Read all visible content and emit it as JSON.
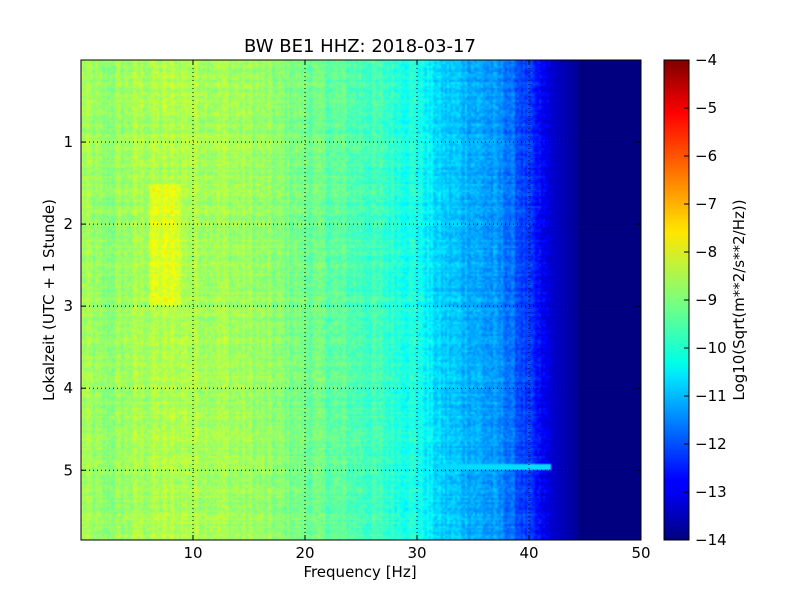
{
  "chart_data": {
    "type": "heatmap",
    "title": "BW BE1 HHZ: 2018-03-17",
    "xlabel": "Frequency [Hz]",
    "ylabel": "Lokalzeit (UTC + 1 Stunde)",
    "xlim": [
      0,
      50
    ],
    "ylim": [
      5.85,
      0
    ],
    "x_ticks": [
      10,
      20,
      30,
      40,
      50
    ],
    "x_tick_labels": [
      "10",
      "20",
      "30",
      "40",
      "50"
    ],
    "y_ticks": [
      1,
      2,
      3,
      4,
      5
    ],
    "y_tick_labels": [
      "1",
      "2",
      "3",
      "4",
      "5"
    ],
    "grid": true,
    "colormap": "jet",
    "colorbar": {
      "label": "Log10(Sqrt(m**2/s**2/Hz))",
      "range": [
        -14,
        -4
      ],
      "ticks": [
        -4,
        -5,
        -6,
        -7,
        -8,
        -9,
        -10,
        -11,
        -12,
        -13,
        -14
      ],
      "tick_labels": [
        "−4",
        "−5",
        "−6",
        "−7",
        "−8",
        "−9",
        "−10",
        "−11",
        "−12",
        "−13",
        "−14"
      ]
    },
    "frequency_profile": {
      "frequency_hz": [
        0,
        2,
        5,
        10,
        15,
        20,
        25,
        28,
        30,
        32,
        35,
        38,
        40,
        41,
        42,
        44,
        45,
        50
      ],
      "log_psd": [
        -8.6,
        -8.9,
        -8.6,
        -8.5,
        -8.7,
        -9.1,
        -9.5,
        -9.8,
        -10.0,
        -10.7,
        -11.0,
        -11.5,
        -12.3,
        -12.8,
        -13.2,
        -13.7,
        -14.0,
        -14.0
      ]
    },
    "annotations": [
      {
        "frequency_hz": [
          32,
          42
        ],
        "time_h": 4.96,
        "log_psd": -10.6
      }
    ]
  }
}
